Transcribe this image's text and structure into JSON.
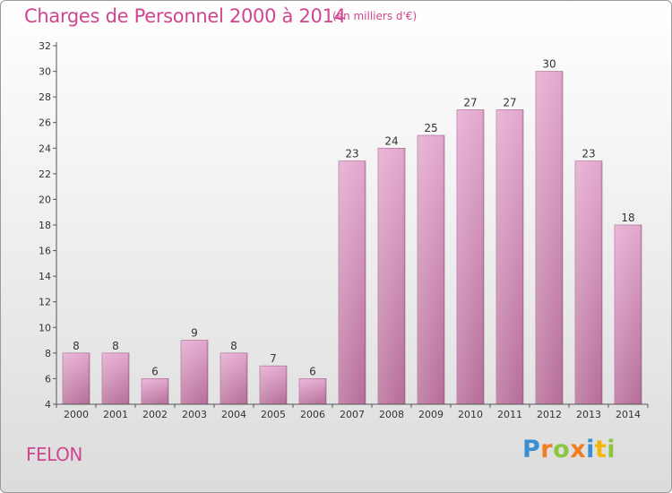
{
  "header": {
    "title": "Charges de Personnel 2000 à 2014",
    "subtitle": "(en milliers d'€)"
  },
  "footer": {
    "town": "FELON",
    "logo_letters": [
      "P",
      "r",
      "o",
      "x",
      "i",
      "t",
      "i"
    ],
    "logo_colors": [
      "#3b8fd1",
      "#f07d1f",
      "#8cc63f",
      "#f07d1f",
      "#3b8fd1",
      "#f4b400",
      "#8cc63f"
    ]
  },
  "colors": {
    "bar_light": "#e4a9cf",
    "bar_dark": "#b76f9b",
    "text_accent": "#d0458f"
  },
  "chart_data": {
    "type": "bar",
    "title": "Charges de Personnel 2000 à 2014",
    "subtitle": "(en milliers d'€)",
    "categories": [
      "2000",
      "2001",
      "2002",
      "2003",
      "2004",
      "2005",
      "2006",
      "2007",
      "2008",
      "2009",
      "2010",
      "2011",
      "2012",
      "2013",
      "2014"
    ],
    "values": [
      8,
      8,
      6,
      9,
      8,
      7,
      6,
      23,
      24,
      25,
      27,
      27,
      30,
      23,
      18
    ],
    "ylim": [
      4,
      32
    ],
    "yticks": [
      4,
      6,
      8,
      10,
      12,
      14,
      16,
      18,
      20,
      22,
      24,
      26,
      28,
      30,
      32
    ],
    "grid": false,
    "data_labels": true
  }
}
